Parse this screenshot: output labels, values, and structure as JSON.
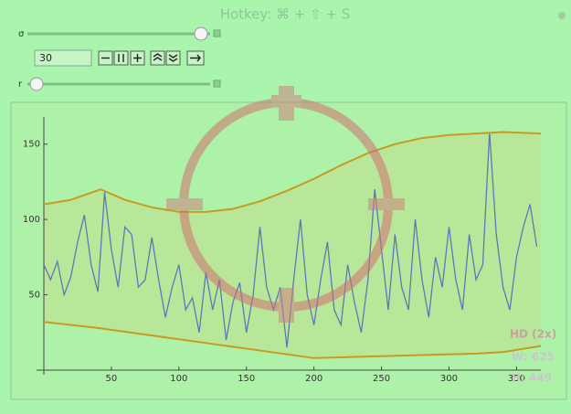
{
  "controls": {
    "hotkey": "Hotkey: ⌘ + ⇧ + S",
    "sigma_label": "σ",
    "r_label": "r",
    "input_value": 30
  },
  "overlay": {
    "hd": "HD (2x)",
    "width": "W: 625",
    "height": "H: 449"
  },
  "chart_data": {
    "type": "line",
    "xlim": [
      0,
      368
    ],
    "ylim": [
      0,
      168
    ],
    "xticks": [
      50,
      100,
      150,
      200,
      250,
      300,
      350
    ],
    "yticks": [
      50,
      100,
      150
    ],
    "grid": false,
    "band_fill": "#b9e79a",
    "series": [
      {
        "color": "#5b78b8",
        "x": [
          0,
          5,
          10,
          15,
          20,
          25,
          30,
          35,
          40,
          45,
          50,
          55,
          60,
          65,
          70,
          75,
          80,
          85,
          90,
          95,
          100,
          105,
          110,
          115,
          120,
          125,
          130,
          135,
          140,
          145,
          150,
          155,
          160,
          165,
          170,
          175,
          180,
          185,
          190,
          195,
          200,
          205,
          210,
          215,
          220,
          225,
          230,
          235,
          240,
          245,
          250,
          255,
          260,
          265,
          270,
          275,
          280,
          285,
          290,
          295,
          300,
          305,
          310,
          315,
          320,
          325,
          330,
          335,
          340,
          345,
          350,
          355,
          360,
          365
        ],
        "values": [
          70,
          60,
          72,
          50,
          62,
          85,
          103,
          70,
          52,
          118,
          80,
          55,
          95,
          90,
          55,
          60,
          88,
          60,
          35,
          55,
          70,
          40,
          48,
          25,
          65,
          40,
          60,
          20,
          45,
          58,
          25,
          50,
          95,
          55,
          40,
          55,
          15,
          60,
          100,
          50,
          30,
          60,
          85,
          40,
          30,
          70,
          45,
          25,
          60,
          120,
          80,
          40,
          90,
          55,
          40,
          100,
          60,
          35,
          75,
          55,
          95,
          60,
          40,
          90,
          60,
          70,
          158,
          90,
          55,
          40,
          75,
          95,
          110,
          82
        ]
      },
      {
        "color": "#c89a20",
        "x": [
          0,
          20,
          42,
          60,
          80,
          100,
          120,
          140,
          160,
          180,
          200,
          220,
          240,
          260,
          280,
          300,
          320,
          340,
          368
        ],
        "values": [
          110,
          113,
          120,
          113,
          108,
          105,
          105,
          107,
          112,
          119,
          127,
          136,
          144,
          150,
          154,
          156,
          157,
          158,
          157
        ]
      },
      {
        "color": "#c89a20",
        "x": [
          0,
          40,
          80,
          120,
          160,
          200,
          240,
          280,
          320,
          340,
          368
        ],
        "values": [
          32,
          28,
          23,
          18,
          13,
          8,
          9,
          10,
          11,
          12,
          16
        ]
      }
    ]
  }
}
